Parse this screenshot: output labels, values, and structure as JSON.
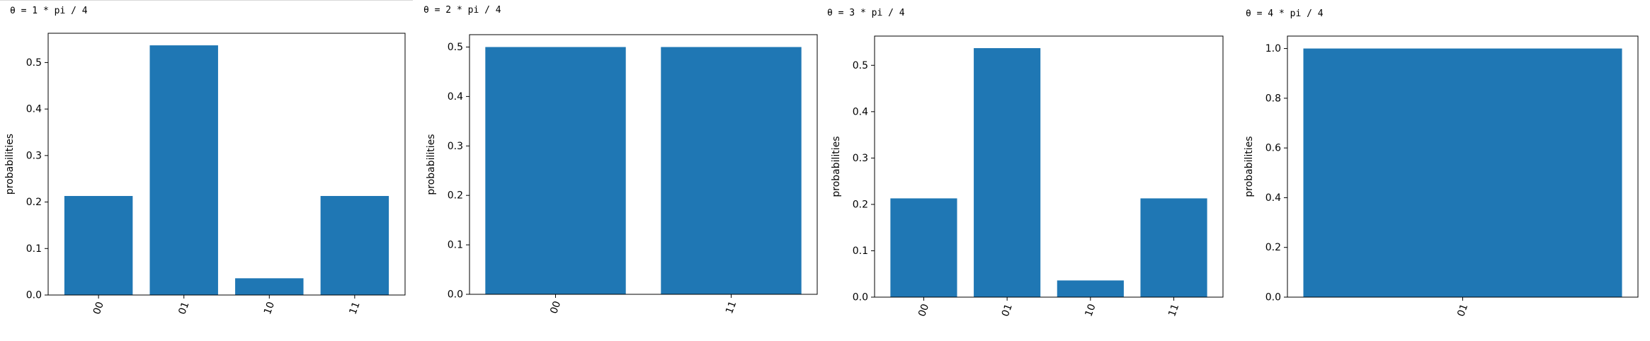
{
  "chart_data": [
    {
      "type": "bar",
      "title": "θ = 1 * pi / 4",
      "categories": [
        "00",
        "01",
        "10",
        "11"
      ],
      "values": [
        0.213,
        0.537,
        0.036,
        0.213
      ],
      "ylabel": "probabilities",
      "xlabel": "",
      "ylim": [
        0,
        0.563
      ],
      "yticks": [
        "0.0",
        "0.1",
        "0.2",
        "0.3",
        "0.4",
        "0.5"
      ],
      "grid": false,
      "color": "#1f77b4"
    },
    {
      "type": "bar",
      "title": "θ = 2 * pi / 4",
      "categories": [
        "00",
        "11"
      ],
      "values": [
        0.5,
        0.5
      ],
      "ylabel": "probabilities",
      "xlabel": "",
      "ylim": [
        0,
        0.525
      ],
      "yticks": [
        "0.0",
        "0.1",
        "0.2",
        "0.3",
        "0.4",
        "0.5"
      ],
      "grid": false,
      "color": "#1f77b4"
    },
    {
      "type": "bar",
      "title": "θ = 3 * pi / 4",
      "categories": [
        "00",
        "01",
        "10",
        "11"
      ],
      "values": [
        0.213,
        0.537,
        0.036,
        0.213
      ],
      "ylabel": "probabilities",
      "xlabel": "",
      "ylim": [
        0,
        0.563
      ],
      "yticks": [
        "0.0",
        "0.1",
        "0.2",
        "0.3",
        "0.4",
        "0.5"
      ],
      "grid": false,
      "color": "#1f77b4"
    },
    {
      "type": "bar",
      "title": "θ = 4 * pi / 4",
      "categories": [
        "01"
      ],
      "values": [
        1.0
      ],
      "ylabel": "probabilities",
      "xlabel": "",
      "ylim": [
        0,
        1.05
      ],
      "yticks": [
        "0.0",
        "0.2",
        "0.4",
        "0.6",
        "0.8",
        "1.0"
      ],
      "grid": false,
      "color": "#1f77b4"
    }
  ]
}
